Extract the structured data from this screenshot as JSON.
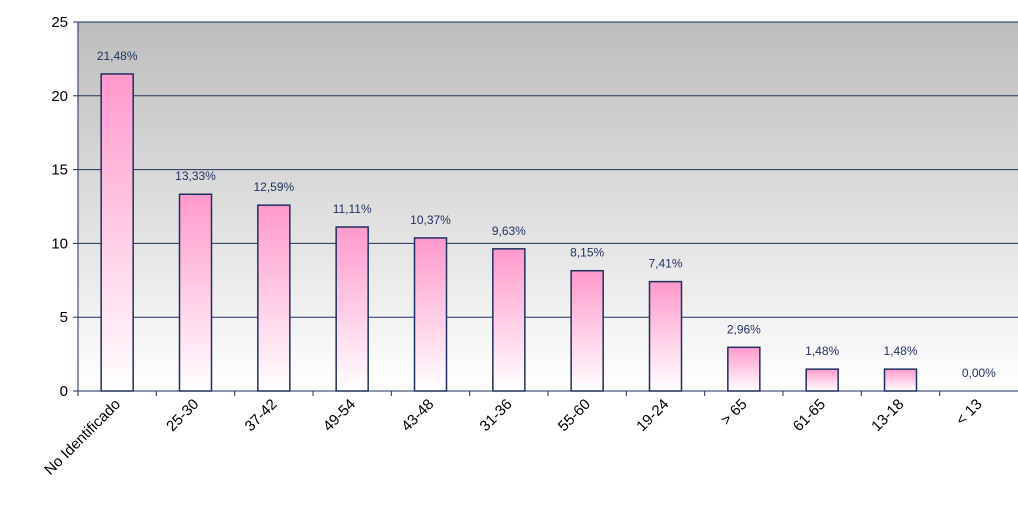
{
  "chart_data": {
    "type": "bar",
    "categories": [
      "No Identificado",
      "25-30",
      "37-42",
      "49-54",
      "43-48",
      "31-36",
      "55-60",
      "19-24",
      "> 65",
      "61-65",
      "13-18",
      "< 13"
    ],
    "values": [
      21.48,
      13.33,
      12.59,
      11.11,
      10.37,
      9.63,
      8.15,
      7.41,
      2.96,
      1.48,
      1.48,
      0.0
    ],
    "value_labels": [
      "21,48%",
      "13,33%",
      "12,59%",
      "11,11%",
      "10,37%",
      "9,63%",
      "8,15%",
      "7,41%",
      "2,96%",
      "1,48%",
      "1,48%",
      "0,00%"
    ],
    "color": "#ff99cc",
    "ylim": [
      0,
      25
    ],
    "yticks": [
      0,
      5,
      10,
      15,
      20,
      25
    ],
    "grid": true
  }
}
